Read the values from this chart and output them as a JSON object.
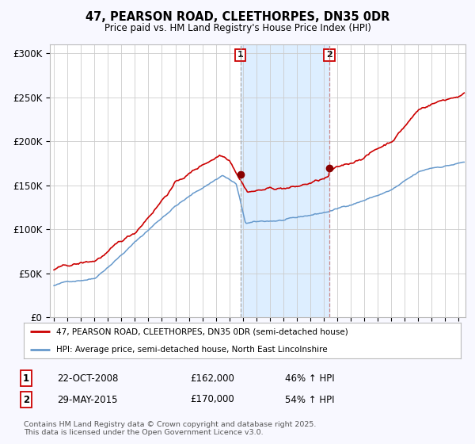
{
  "title1": "47, PEARSON ROAD, CLEETHORPES, DN35 0DR",
  "title2": "Price paid vs. HM Land Registry's House Price Index (HPI)",
  "ylabel_ticks": [
    "£0",
    "£50K",
    "£100K",
    "£150K",
    "£200K",
    "£250K",
    "£300K"
  ],
  "ytick_vals": [
    0,
    50000,
    100000,
    150000,
    200000,
    250000,
    300000
  ],
  "ylim": [
    0,
    310000
  ],
  "xlim_start": 1994.7,
  "xlim_end": 2025.5,
  "sale1_date": 2008.81,
  "sale1_price": 162000,
  "sale2_date": 2015.41,
  "sale2_price": 170000,
  "shading_color": "#ddeeff",
  "red_line_color": "#cc0000",
  "blue_line_color": "#6699cc",
  "marker_color": "#880000",
  "legend1_text": "47, PEARSON ROAD, CLEETHORPES, DN35 0DR (semi-detached house)",
  "legend2_text": "HPI: Average price, semi-detached house, North East Lincolnshire",
  "annotation1_date": "22-OCT-2008",
  "annotation1_price": "£162,000",
  "annotation1_pct": "46% ↑ HPI",
  "annotation2_date": "29-MAY-2015",
  "annotation2_price": "£170,000",
  "annotation2_pct": "54% ↑ HPI",
  "footer": "Contains HM Land Registry data © Crown copyright and database right 2025.\nThis data is licensed under the Open Government Licence v3.0.",
  "bg_color": "#f8f8ff",
  "plot_bg": "#ffffff"
}
